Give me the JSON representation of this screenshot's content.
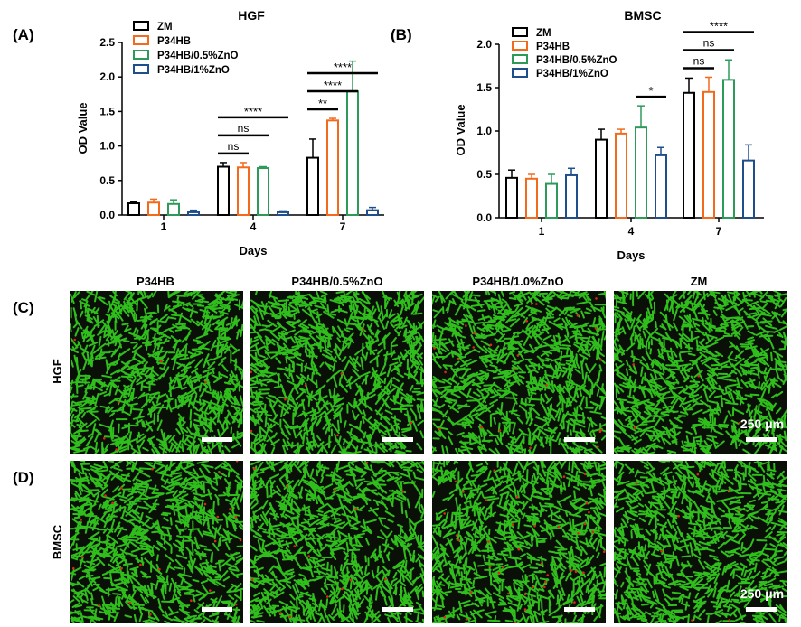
{
  "panels": {
    "a_label": "(A)",
    "b_label": "(B)",
    "c_label": "(C)",
    "d_label": "(D)"
  },
  "series_styles": [
    {
      "name": "ZM",
      "color": "#000000"
    },
    {
      "name": "P34HB",
      "color": "#f26b1d"
    },
    {
      "name": "P34HB/0.5%ZnO",
      "color": "#2e9a5a"
    },
    {
      "name": "P34HB/1%ZnO",
      "color": "#1f4f8a"
    }
  ],
  "chart_data": [
    {
      "type": "bar",
      "title": "HGF",
      "xlabel": "Days",
      "ylabel": "OD Value",
      "categories": [
        "1",
        "4",
        "7"
      ],
      "ylim": [
        0,
        2.5
      ],
      "yticks": [
        "0.0",
        "0.5",
        "1.0",
        "1.5",
        "2.0",
        "2.5"
      ],
      "legend_position": "top-left",
      "series": [
        {
          "name": "ZM",
          "values": [
            0.17,
            0.7,
            0.83
          ],
          "errors": [
            0.02,
            0.06,
            0.27
          ]
        },
        {
          "name": "P34HB",
          "values": [
            0.18,
            0.69,
            1.37
          ],
          "errors": [
            0.05,
            0.07,
            0.03
          ]
        },
        {
          "name": "P34HB/0.5%ZnO",
          "values": [
            0.16,
            0.68,
            1.79
          ],
          "errors": [
            0.06,
            0.02,
            0.44
          ]
        },
        {
          "name": "P34HB/1%ZnO",
          "values": [
            0.04,
            0.04,
            0.07
          ],
          "errors": [
            0.03,
            0.02,
            0.04
          ]
        }
      ],
      "significance": [
        {
          "category": "4",
          "from": "ZM",
          "to": "P34HB",
          "label": "ns"
        },
        {
          "category": "4",
          "from": "ZM",
          "to": "P34HB/0.5%ZnO",
          "label": "ns"
        },
        {
          "category": "4",
          "from": "ZM",
          "to": "P34HB/1%ZnO",
          "label": "****"
        },
        {
          "category": "7",
          "from": "ZM",
          "to": "P34HB",
          "label": "**"
        },
        {
          "category": "7",
          "from": "ZM",
          "to": "P34HB/0.5%ZnO",
          "label": "****"
        },
        {
          "category": "7",
          "from": "ZM",
          "to": "P34HB/1%ZnO",
          "label": "****"
        }
      ]
    },
    {
      "type": "bar",
      "title": "BMSC",
      "xlabel": "Days",
      "ylabel": "OD Value",
      "categories": [
        "1",
        "4",
        "7"
      ],
      "ylim": [
        0,
        2.0
      ],
      "yticks": [
        "0.0",
        "0.5",
        "1.0",
        "1.5",
        "2.0"
      ],
      "legend_position": "top-left",
      "series": [
        {
          "name": "ZM",
          "values": [
            0.46,
            0.9,
            1.44
          ],
          "errors": [
            0.09,
            0.12,
            0.17
          ]
        },
        {
          "name": "P34HB",
          "values": [
            0.45,
            0.97,
            1.45
          ],
          "errors": [
            0.05,
            0.05,
            0.17
          ]
        },
        {
          "name": "P34HB/0.5%ZnO",
          "values": [
            0.39,
            1.04,
            1.59
          ],
          "errors": [
            0.11,
            0.25,
            0.23
          ]
        },
        {
          "name": "P34HB/1%ZnO",
          "values": [
            0.49,
            0.72,
            0.66
          ],
          "errors": [
            0.08,
            0.09,
            0.18
          ]
        }
      ],
      "significance": [
        {
          "category": "4",
          "from": "P34HB/0.5%ZnO",
          "to": "P34HB/1%ZnO",
          "label": "*"
        },
        {
          "category": "7",
          "from": "ZM",
          "to": "P34HB",
          "label": "ns"
        },
        {
          "category": "7",
          "from": "ZM",
          "to": "P34HB/0.5%ZnO",
          "label": "ns"
        },
        {
          "category": "7",
          "from": "ZM",
          "to": "P34HB/1%ZnO",
          "label": "****"
        }
      ]
    }
  ],
  "micrographs": {
    "columns": [
      "P34HB",
      "P34HB/0.5%ZnO",
      "P34HB/1.0%ZnO",
      "ZM"
    ],
    "rows": [
      {
        "label": "HGF",
        "panel": "(C)",
        "red_density": [
          0.015,
          0.02,
          0.06,
          0.01
        ]
      },
      {
        "label": "BMSC",
        "panel": "(D)",
        "red_density": [
          0.06,
          0.04,
          0.1,
          0.02
        ]
      }
    ],
    "scale_bar_text": "250 μm",
    "cell_color": "#33d11f",
    "dead_cell_color": "#e0241a",
    "background_color": "#0a0f08"
  }
}
